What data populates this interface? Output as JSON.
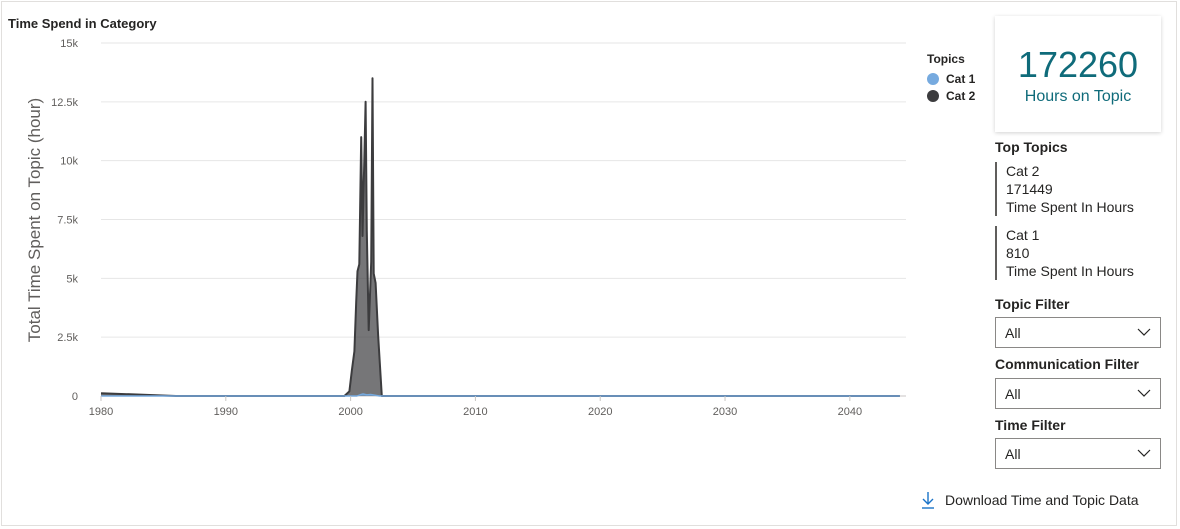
{
  "chart_title": "Time Spend in Category",
  "legend": {
    "title": "Topics",
    "items": [
      {
        "label": "Cat 1",
        "color": "#76aadf"
      },
      {
        "label": "Cat 2",
        "color": "#3c3c3e"
      }
    ]
  },
  "card": {
    "value": "172260",
    "label": "Hours on Topic"
  },
  "top_topics": {
    "heading": "Top Topics",
    "items": [
      {
        "name": "Cat 2",
        "value": "171449",
        "unit": "Time Spent In Hours"
      },
      {
        "name": "Cat 1",
        "value": "810",
        "unit": "Time Spent In Hours"
      }
    ]
  },
  "filters": {
    "topic": {
      "label": "Topic Filter",
      "value": "All"
    },
    "communication": {
      "label": "Communication Filter",
      "value": "All"
    },
    "time": {
      "label": "Time Filter",
      "value": "All"
    }
  },
  "download_label": "Download Time and Topic Data",
  "chart_data": {
    "type": "area",
    "title": "Time Spend in Category",
    "xlabel": "",
    "ylabel": "Total Time Spent on Topic (hour)",
    "xlim": [
      1980,
      2044.5
    ],
    "ylim": [
      0,
      15000
    ],
    "x_ticks": [
      "1980",
      "1990",
      "2000",
      "2010",
      "2020",
      "2030",
      "2040"
    ],
    "y_ticks": [
      "0",
      "2.5k",
      "5k",
      "7.5k",
      "10k",
      "12.5k",
      "15k"
    ],
    "grid": true,
    "legend_position": "right",
    "series": [
      {
        "name": "Cat 2",
        "color": "#3c3c3e",
        "points": [
          [
            1980,
            120
          ],
          [
            1986,
            0
          ],
          [
            1999.5,
            0
          ],
          [
            1999.9,
            200
          ],
          [
            2000.1,
            1100
          ],
          [
            2000.3,
            1900
          ],
          [
            2000.45,
            4000
          ],
          [
            2000.55,
            5300
          ],
          [
            2000.7,
            5600
          ],
          [
            2000.85,
            11000
          ],
          [
            2000.95,
            6800
          ],
          [
            2001.1,
            10000
          ],
          [
            2001.2,
            12500
          ],
          [
            2001.3,
            7000
          ],
          [
            2001.45,
            2800
          ],
          [
            2001.65,
            5700
          ],
          [
            2001.75,
            13500
          ],
          [
            2001.85,
            5200
          ],
          [
            2002.0,
            4800
          ],
          [
            2002.2,
            2600
          ],
          [
            2002.5,
            0
          ],
          [
            2044,
            0
          ]
        ]
      },
      {
        "name": "Cat 1",
        "color": "#76aadf",
        "points": [
          [
            1980,
            0
          ],
          [
            2000.5,
            0
          ],
          [
            2000.8,
            60
          ],
          [
            2001.0,
            90
          ],
          [
            2001.3,
            50
          ],
          [
            2001.6,
            70
          ],
          [
            2002.0,
            30
          ],
          [
            2002.3,
            0
          ],
          [
            2044,
            0
          ]
        ]
      }
    ]
  }
}
